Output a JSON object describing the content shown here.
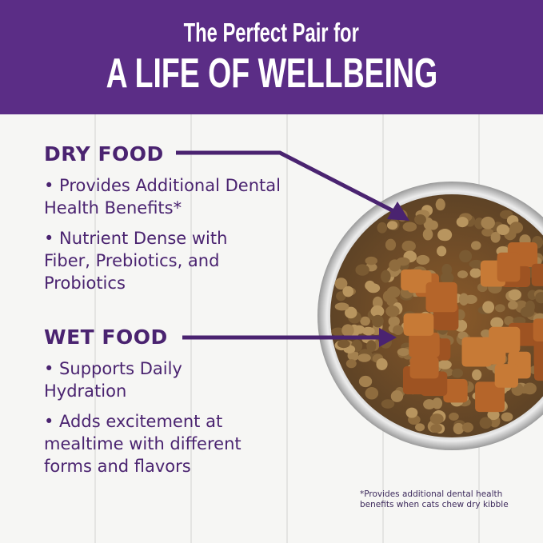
{
  "header": {
    "subtitle": "The Perfect Pair for",
    "title": "A LIFE OF WELLBEING"
  },
  "dry_food": {
    "heading": "DRY FOOD",
    "bullets": [
      "• Provides Additional Dental Health Benefits*",
      "• Nutrient Dense with Fiber, Prebiotics, and Probiotics"
    ]
  },
  "wet_food": {
    "heading": "WET FOOD",
    "bullets": [
      "• Supports Daily Hydration",
      "• Adds excitement at mealtime with different forms and flavors"
    ]
  },
  "footnote": "*Provides additional dental health benefits when cats chew dry kibble",
  "colors": {
    "brand_purple": "#5b2d86",
    "text_purple": "#4a2370"
  }
}
